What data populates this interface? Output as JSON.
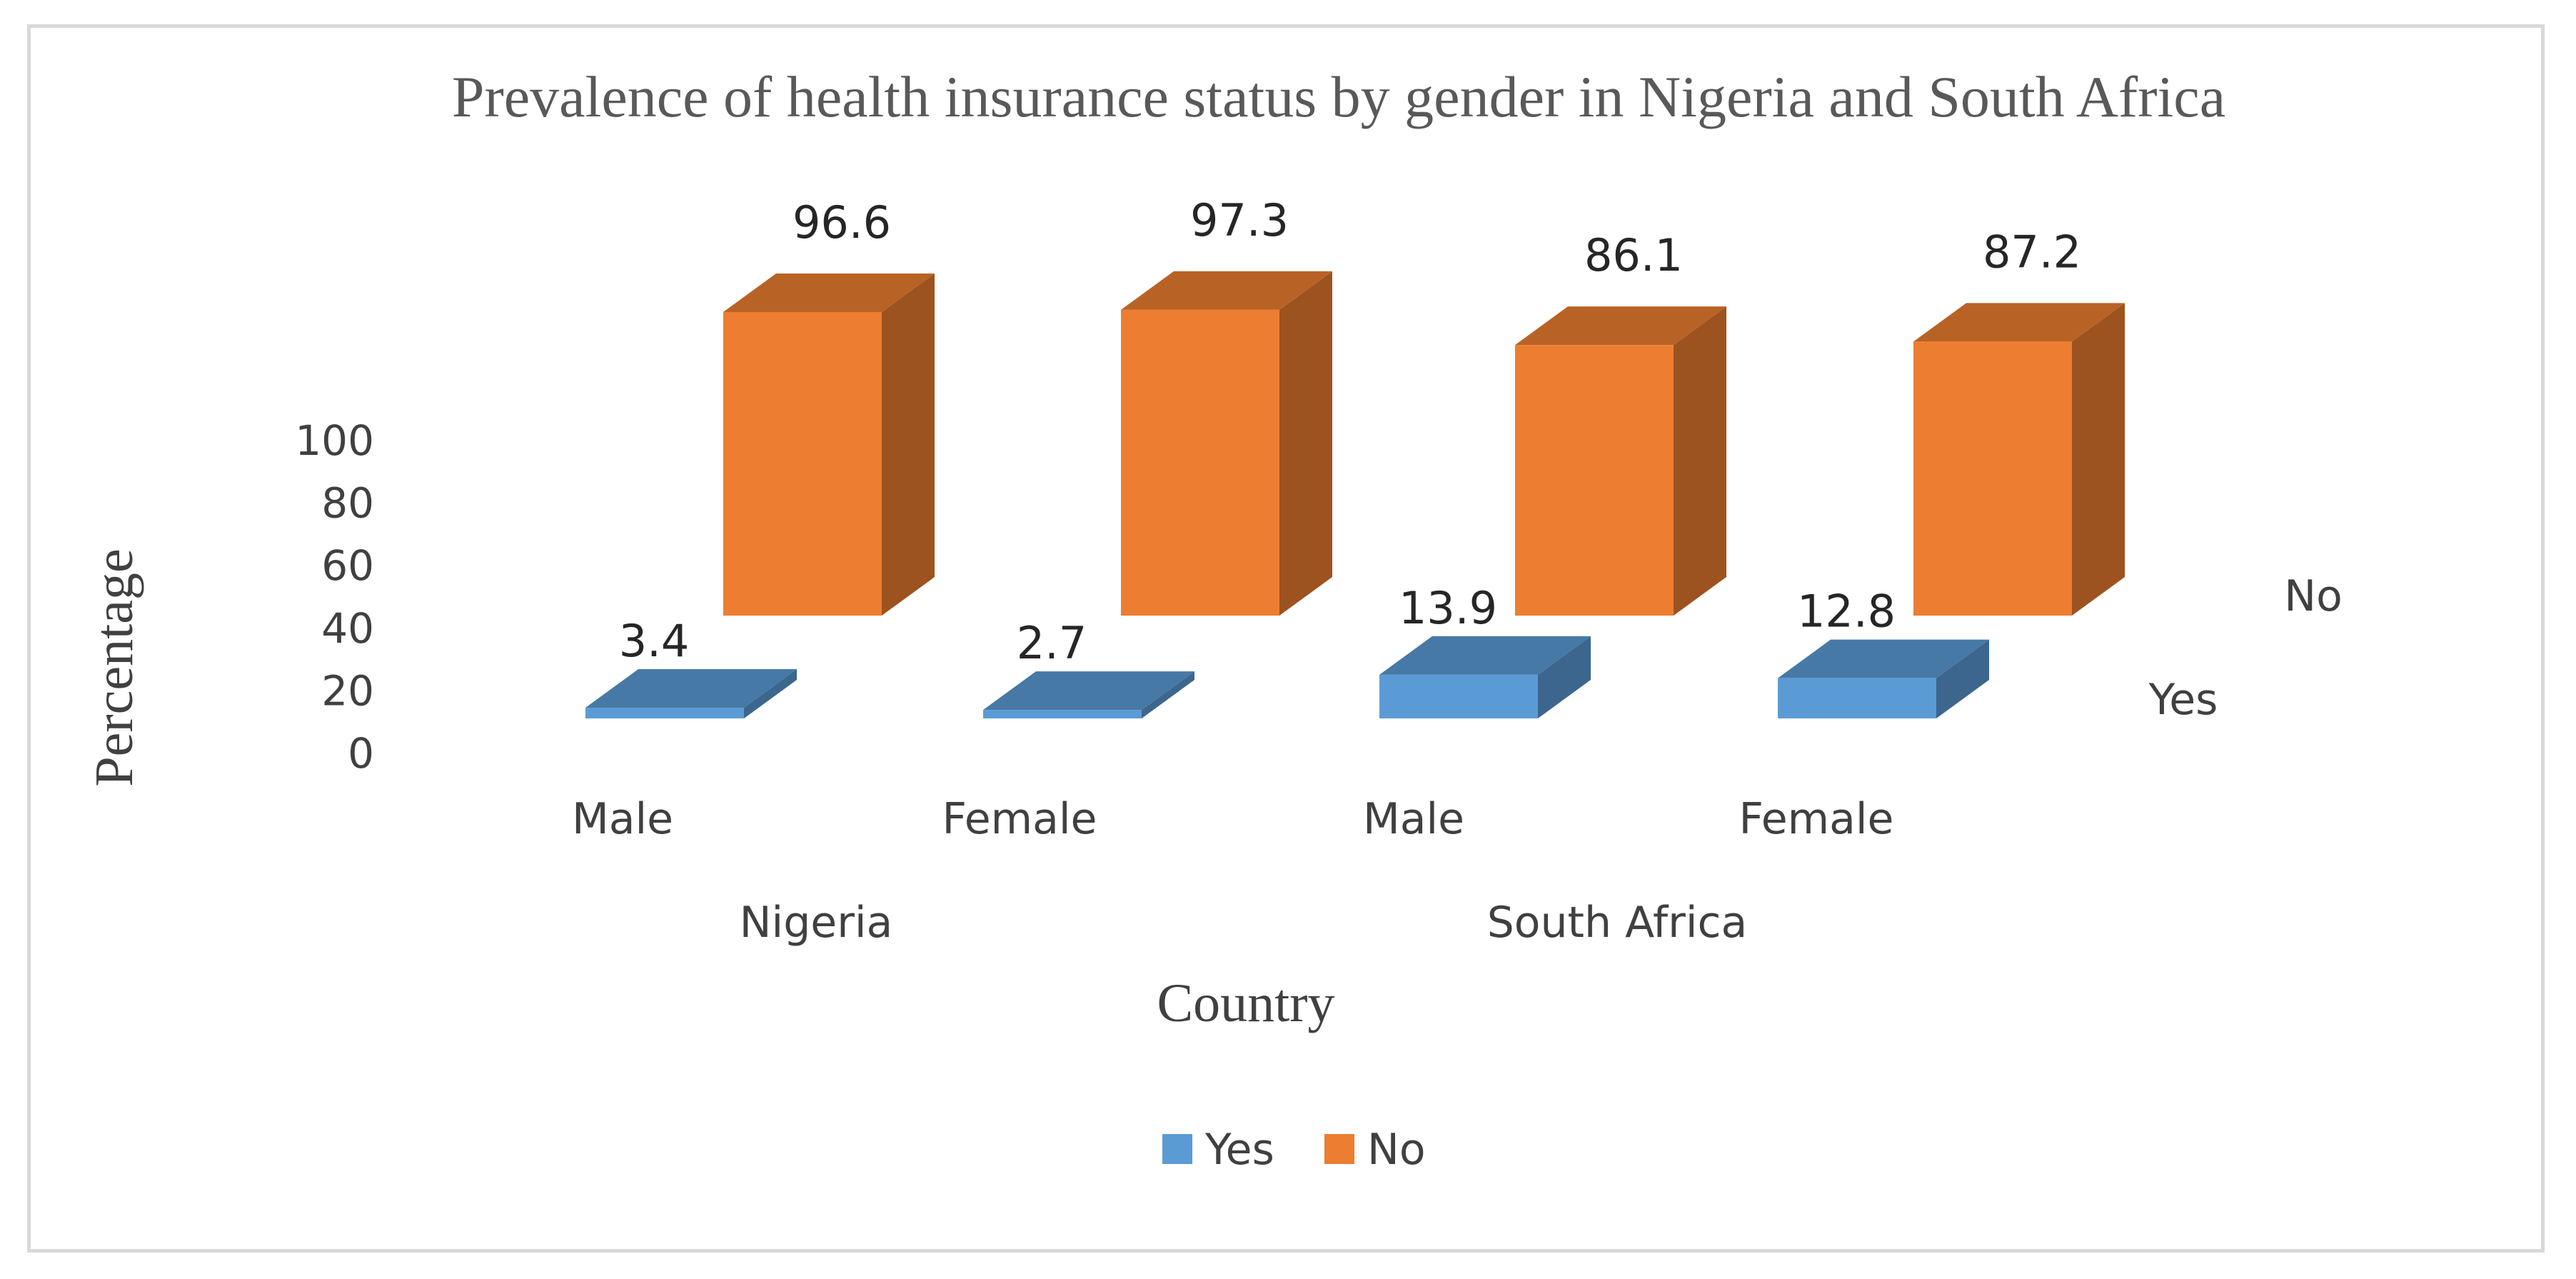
{
  "chart_data": {
    "type": "bar",
    "subtype": "3d-column",
    "title": "Prevalence of health insurance status by gender in Nigeria and South Africa",
    "xlabel": "Country",
    "ylabel": "Percentage",
    "ylim": [
      0,
      100
    ],
    "yticks": [
      "0",
      "20",
      "40",
      "60",
      "80",
      "100"
    ],
    "categories": [
      {
        "group": "Nigeria",
        "label": "Male"
      },
      {
        "group": "Nigeria",
        "label": "Female"
      },
      {
        "group": "South Africa",
        "label": "Male"
      },
      {
        "group": "South Africa",
        "label": "Female"
      }
    ],
    "groups": [
      "Nigeria",
      "South Africa"
    ],
    "series": [
      {
        "name": "Yes",
        "color": "#5b9bd5",
        "values": [
          3.4,
          2.7,
          13.9,
          12.8
        ],
        "labels": [
          "3.4",
          "2.7",
          "13.9",
          "12.8"
        ]
      },
      {
        "name": "No",
        "color": "#ed7d31",
        "values": [
          96.6,
          97.3,
          86.1,
          87.2
        ],
        "labels": [
          "96.6",
          "97.3",
          "86.1",
          "87.2"
        ]
      }
    ],
    "depth_axis_labels": [
      "No",
      "Yes"
    ],
    "legend": {
      "position": "bottom",
      "items": [
        "Yes",
        "No"
      ]
    }
  }
}
